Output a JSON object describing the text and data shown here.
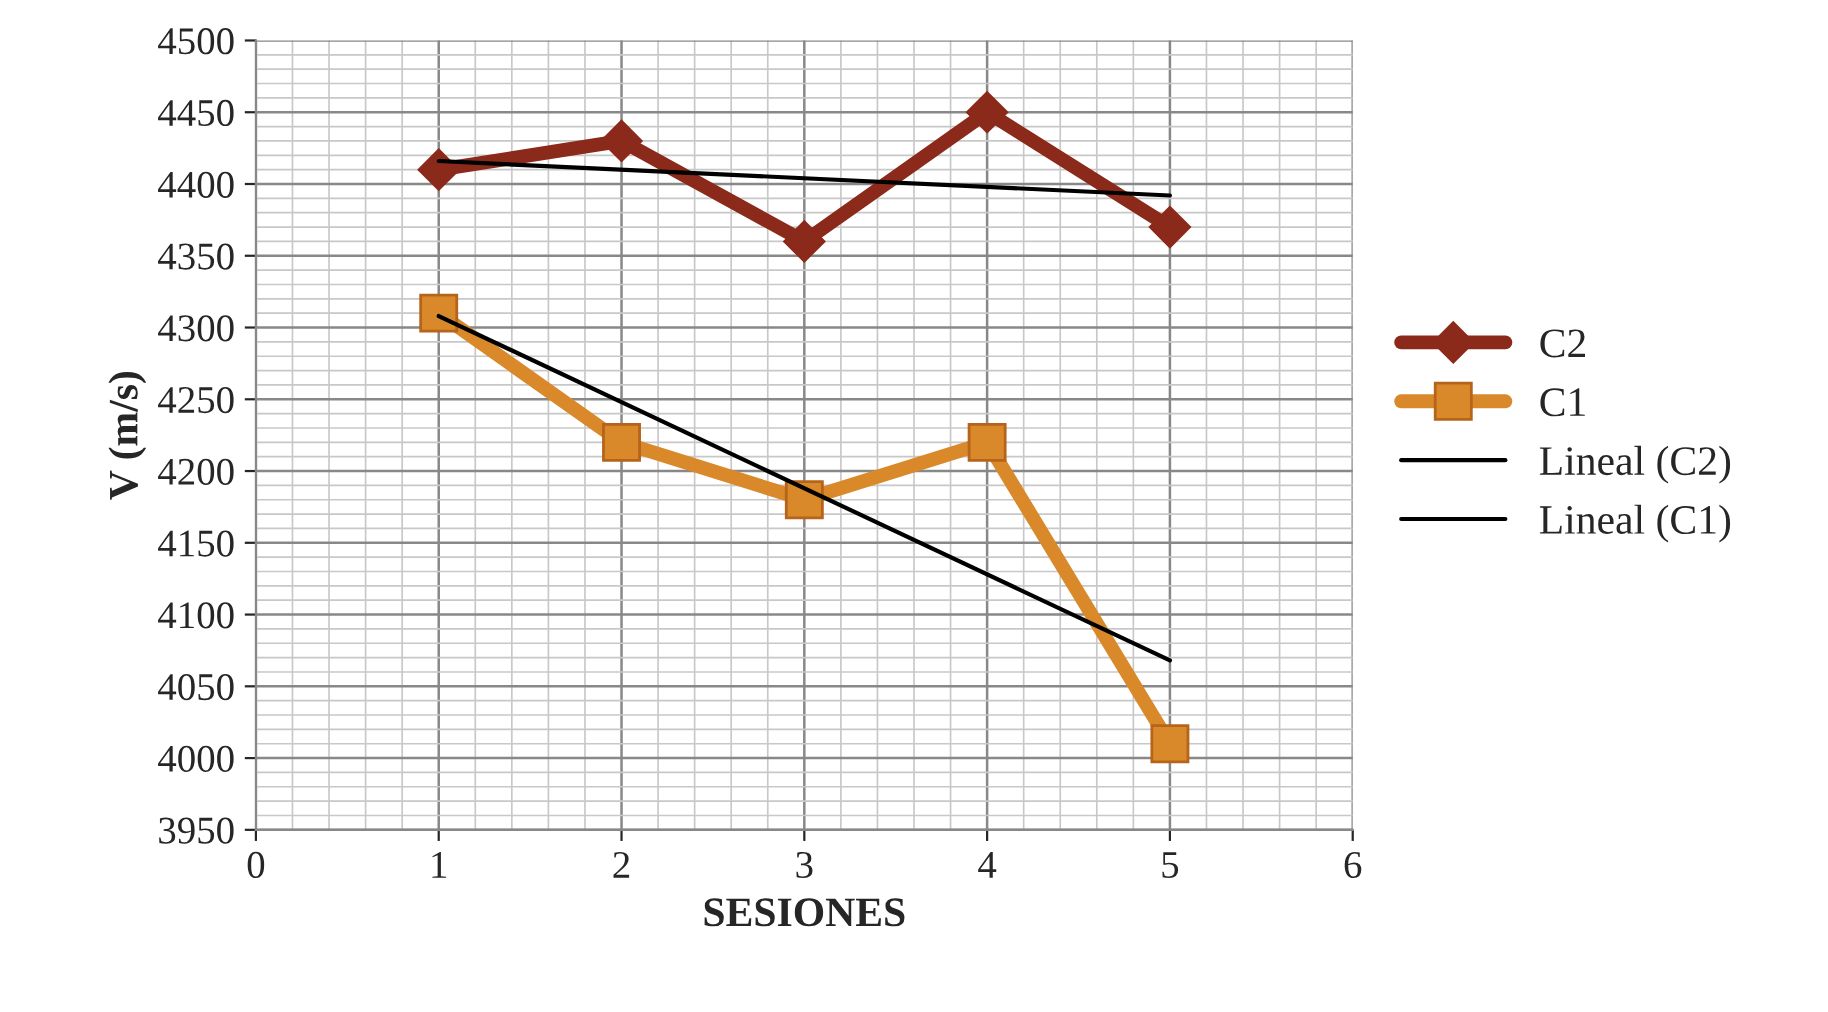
{
  "chart_data": {
    "type": "line",
    "xlabel": "SESIONES",
    "ylabel": "V (m/s)",
    "xlim": [
      0,
      6
    ],
    "xticks": [
      0,
      1,
      2,
      3,
      4,
      5,
      6
    ],
    "ylim": [
      3950,
      4500
    ],
    "yticks": [
      3950,
      4000,
      4050,
      4100,
      4150,
      4200,
      4250,
      4300,
      4350,
      4400,
      4450,
      4500
    ],
    "grid": true,
    "legend": "right",
    "series": [
      {
        "name": "C2",
        "color": "#8b2a1a",
        "marker": "diamond",
        "x": [
          1,
          2,
          3,
          4,
          5
        ],
        "values": [
          4410,
          4430,
          4360,
          4450,
          4370
        ]
      },
      {
        "name": "C1",
        "color": "#d9892a",
        "marker": "square",
        "x": [
          1,
          2,
          3,
          4,
          5
        ],
        "values": [
          4310,
          4220,
          4180,
          4220,
          4010
        ]
      },
      {
        "name": "Lineal (C2)",
        "color": "#000000",
        "marker": "none",
        "x": [
          1,
          5
        ],
        "values": [
          4416,
          4392
        ]
      },
      {
        "name": "Lineal (C1)",
        "color": "#000000",
        "marker": "none",
        "x": [
          1,
          5
        ],
        "values": [
          4308,
          4068
        ]
      }
    ]
  }
}
